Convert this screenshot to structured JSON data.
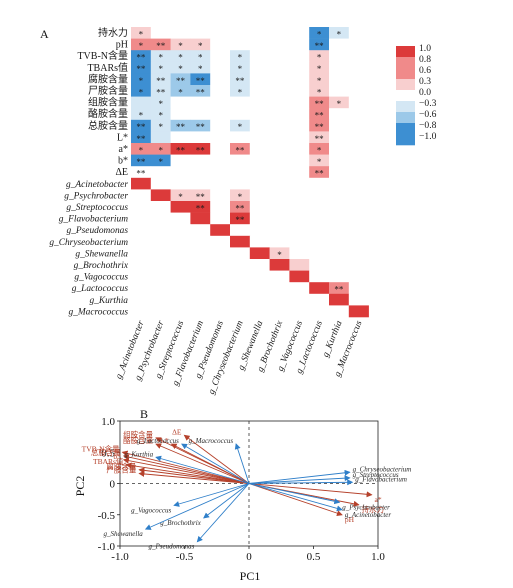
{
  "panels": {
    "a_label": "A",
    "b_label": "B"
  },
  "colors": {
    "strong_positive": "#dc3a3a",
    "positive": "#f08a8a",
    "weak_positive": "#f8cfcf",
    "neutral": "#ffffff",
    "weak_negative": "#d4e7f4",
    "negative": "#9cc9e9",
    "strong_negative": "#3d8fd2",
    "arrow_variable": "#b5412b",
    "arrow_genus": "#2f7fc9",
    "species_label": "#2b2b2b"
  },
  "chart_data": [
    {
      "type": "heatmap",
      "row_labels": [
        "持水力",
        "pH",
        "TVB-N含量",
        "TBARs值",
        "腐胺含量",
        "尸胺含量",
        "组胺含量",
        "酪胺含量",
        "总胺含量",
        "L*",
        "a*",
        "b*",
        "ΔE",
        "g_Acinetobacter",
        "g_Psychrobacter",
        "g_Streptococcus",
        "g_Flavobacterium",
        "g_Pseudomonas",
        "g_Chryseobacterium",
        "g_Shewanella",
        "g_Brochothrix",
        "g_Vagococcus",
        "g_Lactococcus",
        "g_Kurthia",
        "g_Macrococcus"
      ],
      "col_labels": [
        "g_Acinetobacter",
        "g_Psychrobacter",
        "g_Streptococcus",
        "g_Flavobacterium",
        "g_Pseudomonas",
        "g_Chryseobacterium",
        "g_Shewanella",
        "g_Brochothrix",
        "g_Vagococcus",
        "g_Lactococcus",
        "g_Kurthia",
        "g_Macrococcus"
      ],
      "values": [
        [
          0.35,
          0.08,
          0.05,
          0.05,
          0.02,
          0.02,
          0.05,
          0.02,
          0.02,
          -0.85,
          -0.3,
          0.05
        ],
        [
          0.6,
          0.75,
          0.45,
          0.45,
          0.05,
          0.1,
          0.02,
          0.02,
          0.02,
          -0.85,
          0.05,
          0.1
        ],
        [
          -0.8,
          -0.45,
          -0.35,
          -0.4,
          0.0,
          -0.35,
          0.0,
          0.0,
          0.0,
          0.55,
          0.05,
          -0.05
        ],
        [
          -0.85,
          -0.45,
          -0.4,
          -0.45,
          0.0,
          -0.3,
          0.0,
          0.0,
          0.0,
          0.5,
          0.05,
          -0.05
        ],
        [
          -0.85,
          -0.55,
          -0.75,
          -0.8,
          0.0,
          -0.55,
          0.0,
          0.0,
          0.0,
          0.5,
          0.05,
          -0.05
        ],
        [
          -0.85,
          -0.55,
          -0.7,
          -0.75,
          0.0,
          -0.45,
          0.0,
          0.0,
          0.0,
          0.5,
          0.05,
          -0.05
        ],
        [
          -0.3,
          -0.3,
          0.0,
          0.0,
          0.0,
          0.0,
          0.0,
          0.0,
          0.0,
          0.85,
          0.3,
          0.0
        ],
        [
          -0.4,
          -0.3,
          0.0,
          0.0,
          0.0,
          0.0,
          0.0,
          0.0,
          0.0,
          0.85,
          0.05,
          0.0
        ],
        [
          -0.8,
          -0.55,
          -0.65,
          -0.7,
          0.0,
          -0.4,
          0.0,
          0.0,
          0.0,
          0.8,
          0.1,
          -0.05
        ],
        [
          -0.85,
          -0.5,
          0.0,
          0.0,
          0.0,
          0.0,
          0.0,
          0.0,
          0.0,
          0.3,
          0.0,
          0.0
        ],
        [
          0.7,
          0.65,
          0.9,
          0.9,
          0.05,
          0.85,
          0.05,
          0.02,
          0.02,
          0.8,
          0.05,
          0.02
        ],
        [
          -0.85,
          -0.85,
          0.0,
          0.0,
          0.0,
          0.0,
          0.0,
          0.0,
          0.0,
          0.35,
          0.0,
          0.0
        ],
        [
          -0.2,
          -0.1,
          0.0,
          0.0,
          0.0,
          0.0,
          0.0,
          0.0,
          0.0,
          0.8,
          0.0,
          0.0
        ],
        [
          1.0,
          0.0,
          0.0,
          0.0,
          0.0,
          0.0,
          0.0,
          0.0,
          0.0,
          0.0,
          0.0,
          0.0
        ],
        [
          0.0,
          1.0,
          0.4,
          0.55,
          0.0,
          0.45,
          0.0,
          0.0,
          0.0,
          0.0,
          0.0,
          0.0
        ],
        [
          0.0,
          0.0,
          1.0,
          0.9,
          0.0,
          0.85,
          0.0,
          0.0,
          0.0,
          0.0,
          0.0,
          0.0
        ],
        [
          0.0,
          0.0,
          0.0,
          1.0,
          0.0,
          0.9,
          -0.1,
          0.0,
          0.0,
          0.0,
          0.0,
          0.0
        ],
        [
          0.0,
          0.0,
          0.0,
          0.0,
          1.0,
          0.15,
          0.1,
          0.05,
          0.0,
          0.0,
          0.0,
          0.0
        ],
        [
          0.0,
          0.0,
          0.0,
          0.0,
          0.0,
          1.0,
          0.2,
          0.1,
          0.1,
          0.0,
          0.0,
          0.0
        ],
        [
          0.0,
          0.0,
          0.0,
          0.0,
          0.0,
          0.0,
          1.0,
          0.55,
          0.25,
          0.0,
          0.0,
          0.0
        ],
        [
          0.0,
          0.0,
          0.0,
          0.0,
          0.0,
          0.0,
          0.0,
          1.0,
          0.3,
          0.05,
          0.0,
          0.0
        ],
        [
          0.0,
          0.0,
          0.0,
          0.0,
          0.0,
          0.0,
          0.0,
          0.0,
          1.0,
          0.1,
          0.0,
          0.0
        ],
        [
          0.0,
          0.0,
          0.0,
          0.0,
          0.0,
          0.0,
          0.0,
          0.0,
          0.0,
          1.0,
          0.8,
          0.0
        ],
        [
          0.0,
          0.0,
          0.0,
          0.0,
          0.0,
          0.0,
          0.0,
          0.0,
          0.0,
          0.0,
          1.0,
          0.0
        ],
        [
          0.0,
          0.0,
          0.0,
          0.0,
          0.0,
          0.0,
          0.0,
          0.0,
          0.0,
          0.0,
          0.0,
          1.0
        ]
      ],
      "significance": [
        [
          "*",
          "",
          "",
          "",
          "",
          "",
          "",
          "",
          "",
          "*",
          "*",
          ""
        ],
        [
          "*",
          "**",
          "*",
          "*",
          "",
          "",
          "",
          "",
          "",
          "**",
          "",
          ""
        ],
        [
          "**",
          "*",
          "*",
          "*",
          "",
          "*",
          "",
          "",
          "",
          "*",
          "",
          ""
        ],
        [
          "**",
          "*",
          "*",
          "*",
          "",
          "*",
          "",
          "",
          "",
          "*",
          "",
          ""
        ],
        [
          "*",
          "**",
          "**",
          "**",
          "",
          "**",
          "",
          "",
          "",
          "*",
          "",
          ""
        ],
        [
          "*",
          "**",
          "*",
          "**",
          "",
          "*",
          "",
          "",
          "",
          "*",
          "",
          ""
        ],
        [
          "",
          "*",
          "",
          "",
          "",
          "",
          "",
          "",
          "",
          "**",
          "*",
          ""
        ],
        [
          "*",
          "*",
          "",
          "",
          "",
          "",
          "",
          "",
          "",
          "**",
          "",
          ""
        ],
        [
          "**",
          "*",
          "**",
          "**",
          "",
          "*",
          "",
          "",
          "",
          "**",
          "",
          ""
        ],
        [
          "**",
          "",
          "",
          "",
          "",
          "",
          "",
          "",
          "",
          "**",
          "",
          ""
        ],
        [
          "*",
          "*",
          "**",
          "**",
          "",
          "**",
          "",
          "",
          "",
          "*",
          "",
          ""
        ],
        [
          "**",
          "*",
          "",
          "",
          "",
          "",
          "",
          "",
          "",
          "*",
          "",
          ""
        ],
        [
          "**",
          "",
          "",
          "",
          "",
          "",
          "",
          "",
          "",
          "**",
          "",
          ""
        ],
        [
          "",
          "",
          "",
          "",
          "",
          "",
          "",
          "",
          "",
          "",
          "",
          ""
        ],
        [
          "",
          "",
          "*",
          "**",
          "",
          "*",
          "",
          "",
          "",
          "",
          "",
          ""
        ],
        [
          "",
          "",
          "",
          "**",
          "",
          "**",
          "",
          "",
          "",
          "",
          "",
          ""
        ],
        [
          "",
          "",
          "",
          "",
          "",
          "**",
          "",
          "",
          "",
          "",
          "",
          ""
        ],
        [
          "",
          "",
          "",
          "",
          "",
          "",
          "",
          "",
          "",
          "",
          "",
          ""
        ],
        [
          "",
          "",
          "",
          "",
          "",
          "",
          "",
          "",
          "",
          "",
          "",
          ""
        ],
        [
          "",
          "",
          "",
          "",
          "",
          "",
          "",
          "*",
          "",
          "",
          "",
          ""
        ],
        [
          "",
          "",
          "",
          "",
          "",
          "",
          "",
          "",
          "",
          "",
          "",
          ""
        ],
        [
          "",
          "",
          "",
          "",
          "",
          "",
          "",
          "",
          "",
          "",
          "",
          ""
        ],
        [
          "",
          "",
          "",
          "",
          "",
          "",
          "",
          "",
          "",
          "",
          "**",
          ""
        ],
        [
          "",
          "",
          "",
          "",
          "",
          "",
          "",
          "",
          "",
          "",
          "",
          ""
        ],
        [
          "",
          "",
          "",
          "",
          "",
          "",
          "",
          "",
          "",
          "",
          "",
          ""
        ]
      ],
      "legend": {
        "ticks": [
          "1.0",
          "0.8",
          "0.6",
          "0.3",
          "0.0",
          "−0.3",
          "−0.6",
          "−0.8",
          "−1.0"
        ],
        "placement": "right"
      }
    },
    {
      "type": "scatter",
      "subtype": "biplot",
      "xlabel": "PC1",
      "ylabel": "PC2",
      "xlim": [
        -1.0,
        1.0
      ],
      "ylim": [
        -1.0,
        1.0
      ],
      "xticks": [
        "-1.0",
        "-0.5",
        "0",
        "0.5",
        "1.0"
      ],
      "yticks": [
        "1.0",
        "0.5",
        "0",
        "-0.5",
        "-1.0"
      ],
      "series": [
        {
          "points": [
            {
              "label": "组胺含量",
              "x": -0.72,
              "y": 0.73
            },
            {
              "label": "ΔE",
              "x": -0.5,
              "y": 0.77
            },
            {
              "label": "酪胺含量",
              "x": -0.72,
              "y": 0.63
            },
            {
              "label": "L*",
              "x": -0.6,
              "y": 0.63
            },
            {
              "label": "TVB-N含量",
              "x": -0.98,
              "y": 0.5
            },
            {
              "label": "总胺含量",
              "x": -0.97,
              "y": 0.44
            },
            {
              "label": "b*",
              "x": -0.97,
              "y": 0.38
            },
            {
              "label": "TBARs值",
              "x": -0.95,
              "y": 0.3
            },
            {
              "label": "腐胺含量",
              "x": -0.85,
              "y": 0.22
            },
            {
              "label": "尸胺含量",
              "x": -0.85,
              "y": 0.16
            },
            {
              "label": "a*",
              "x": 0.95,
              "y": -0.18
            },
            {
              "label": "持水力",
              "x": 0.85,
              "y": -0.34
            },
            {
              "label": "pH",
              "x": 0.72,
              "y": -0.5
            }
          ]
        },
        {
          "points": [
            {
              "label": "g_Lactococcus",
              "x": -0.52,
              "y": 0.63
            },
            {
              "label": "g_Kurthia",
              "x": -0.72,
              "y": 0.42
            },
            {
              "label": "g_Macrococcus",
              "x": -0.1,
              "y": 0.63
            },
            {
              "label": "g_Chryseobacterium",
              "x": 0.78,
              "y": 0.18
            },
            {
              "label": "g_Streptococcus",
              "x": 0.78,
              "y": 0.09
            },
            {
              "label": "g_Flavobacterium",
              "x": 0.8,
              "y": 0.02
            },
            {
              "label": "g_Psychrobacter",
              "x": 0.7,
              "y": -0.3
            },
            {
              "label": "g_Acinetobacter",
              "x": 0.72,
              "y": -0.42
            },
            {
              "label": "g_Vagococcus",
              "x": -0.58,
              "y": -0.35
            },
            {
              "label": "g_Brochothrix",
              "x": -0.35,
              "y": -0.55
            },
            {
              "label": "g_Shewanella",
              "x": -0.8,
              "y": -0.73
            },
            {
              "label": "g_Pseudomonas",
              "x": -0.4,
              "y": -0.93
            }
          ]
        }
      ]
    }
  ]
}
